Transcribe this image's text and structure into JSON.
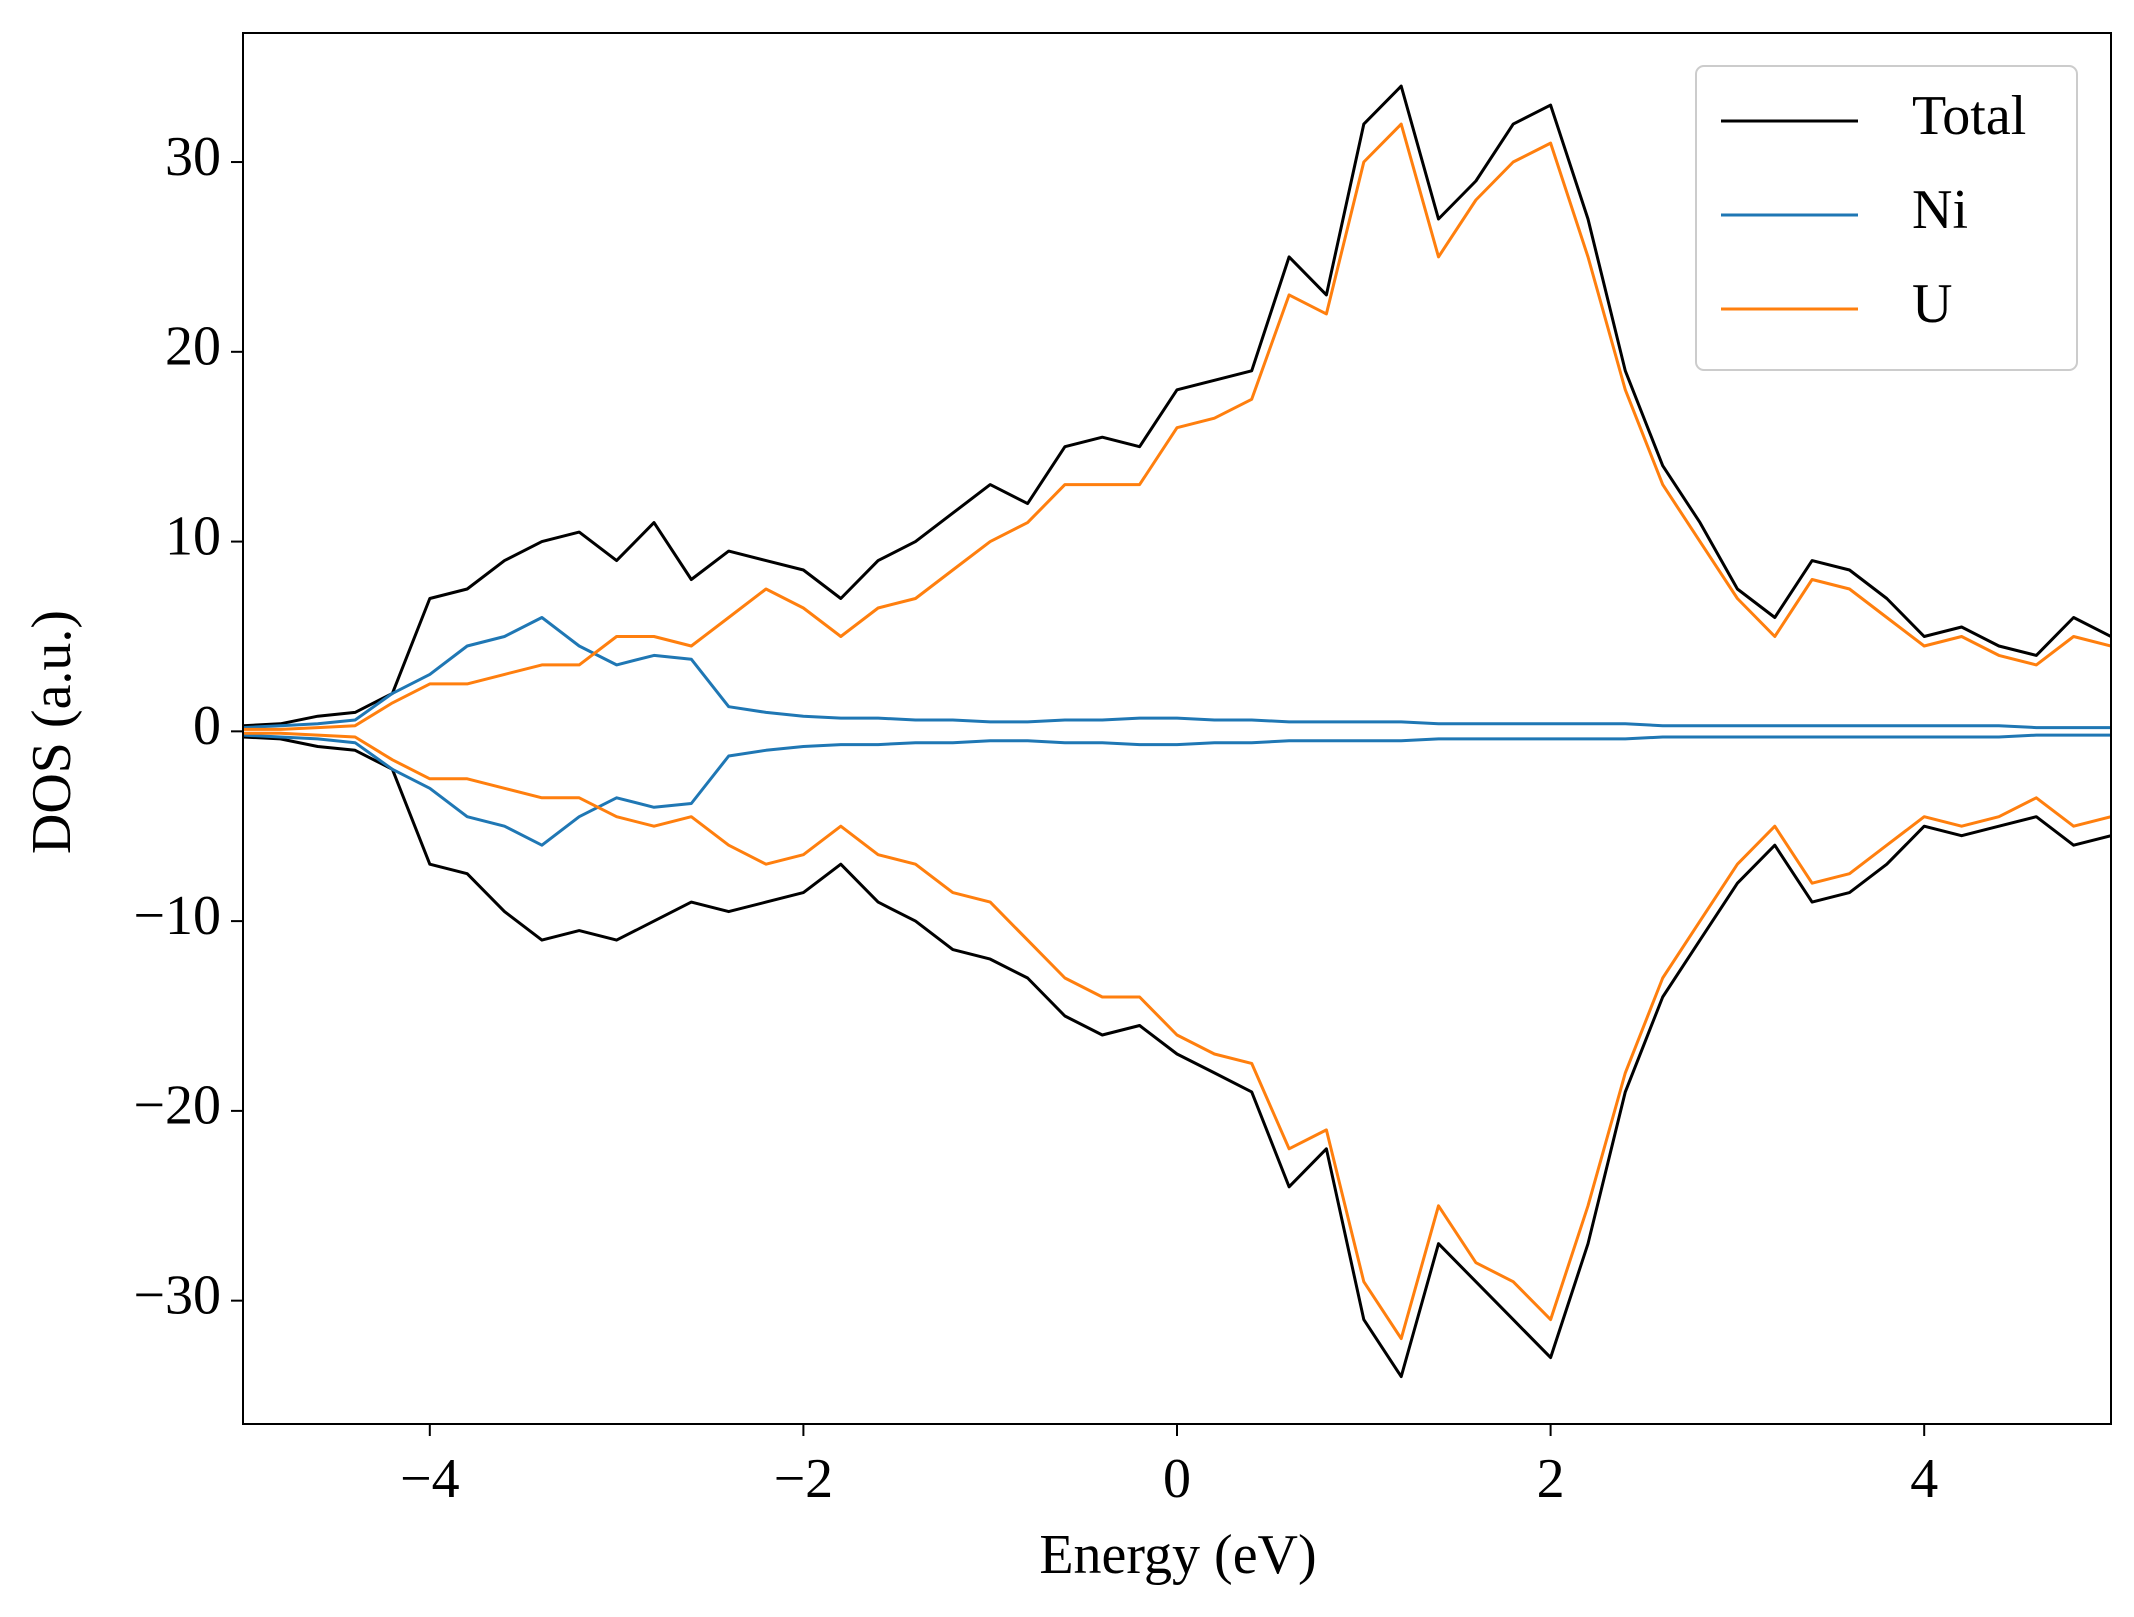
{
  "chart_data": {
    "type": "line",
    "xlabel": "Energy (eV)",
    "ylabel": "DOS (a.u.)",
    "x": [
      -5,
      -4.8,
      -4.6,
      -4.4,
      -4.2,
      -4,
      -3.8,
      -3.6,
      -3.4,
      -3.2,
      -3,
      -2.8,
      -2.6,
      -2.4,
      -2.2,
      -2,
      -1.8,
      -1.6,
      -1.4,
      -1.2,
      -1,
      -0.8,
      -0.6,
      -0.4,
      -0.2,
      0,
      0.2,
      0.4,
      0.6,
      0.8,
      1,
      1.2,
      1.4,
      1.6,
      1.8,
      2,
      2.2,
      2.4,
      2.6,
      2.8,
      3,
      3.2,
      3.4,
      3.6,
      3.8,
      4,
      4.2,
      4.4,
      4.6,
      4.8,
      5
    ],
    "series": [
      {
        "name": "Total",
        "color": "#000000",
        "values": [
          0.3,
          0.4,
          0.8,
          1.0,
          2.0,
          7.0,
          7.5,
          9.0,
          10.0,
          10.5,
          9.0,
          11.0,
          8.0,
          9.5,
          9.0,
          8.5,
          7.0,
          9.0,
          10.0,
          11.5,
          13.0,
          12.0,
          15.0,
          15.5,
          15.0,
          18.0,
          18.5,
          19.0,
          25.0,
          23.0,
          32.0,
          34.0,
          27.0,
          29.0,
          32.0,
          33.0,
          27.0,
          19.0,
          14.0,
          11.0,
          7.5,
          6.0,
          9.0,
          8.5,
          7.0,
          5.0,
          5.5,
          4.5,
          4.0,
          6.0,
          5.0
        ],
        "values_down": [
          -0.3,
          -0.4,
          -0.8,
          -1.0,
          -2.0,
          -7.0,
          -7.5,
          -9.5,
          -11.0,
          -10.5,
          -11.0,
          -10.0,
          -9.0,
          -9.5,
          -9.0,
          -8.5,
          -7.0,
          -9.0,
          -10.0,
          -11.5,
          -12.0,
          -13.0,
          -15.0,
          -16.0,
          -15.5,
          -17.0,
          -18.0,
          -19.0,
          -24.0,
          -22.0,
          -31.0,
          -34.0,
          -27.0,
          -29.0,
          -31.0,
          -33.0,
          -27.0,
          -19.0,
          -14.0,
          -11.0,
          -8.0,
          -6.0,
          -9.0,
          -8.5,
          -7.0,
          -5.0,
          -5.5,
          -5.0,
          -4.5,
          -6.0,
          -5.5
        ]
      },
      {
        "name": "Ni",
        "color": "#1f77b4",
        "values": [
          0.2,
          0.3,
          0.4,
          0.6,
          2.0,
          3.0,
          4.5,
          5.0,
          6.0,
          4.5,
          3.5,
          4.0,
          3.8,
          1.3,
          1.0,
          0.8,
          0.7,
          0.7,
          0.6,
          0.6,
          0.5,
          0.5,
          0.6,
          0.6,
          0.7,
          0.7,
          0.6,
          0.6,
          0.5,
          0.5,
          0.5,
          0.5,
          0.4,
          0.4,
          0.4,
          0.4,
          0.4,
          0.4,
          0.3,
          0.3,
          0.3,
          0.3,
          0.3,
          0.3,
          0.3,
          0.3,
          0.3,
          0.3,
          0.2,
          0.2,
          0.2
        ],
        "values_down": [
          -0.2,
          -0.3,
          -0.4,
          -0.6,
          -2.0,
          -3.0,
          -4.5,
          -5.0,
          -6.0,
          -4.5,
          -3.5,
          -4.0,
          -3.8,
          -1.3,
          -1.0,
          -0.8,
          -0.7,
          -0.7,
          -0.6,
          -0.6,
          -0.5,
          -0.5,
          -0.6,
          -0.6,
          -0.7,
          -0.7,
          -0.6,
          -0.6,
          -0.5,
          -0.5,
          -0.5,
          -0.5,
          -0.4,
          -0.4,
          -0.4,
          -0.4,
          -0.4,
          -0.4,
          -0.3,
          -0.3,
          -0.3,
          -0.3,
          -0.3,
          -0.3,
          -0.3,
          -0.3,
          -0.3,
          -0.3,
          -0.2,
          -0.2,
          -0.2
        ]
      },
      {
        "name": "U",
        "color": "#ff7f0e",
        "values": [
          0.1,
          0.1,
          0.2,
          0.3,
          1.5,
          2.5,
          2.5,
          3.0,
          3.5,
          3.5,
          5.0,
          5.0,
          4.5,
          6.0,
          7.5,
          6.5,
          5.0,
          6.5,
          7.0,
          8.5,
          10.0,
          11.0,
          13.0,
          13.0,
          13.0,
          16.0,
          16.5,
          17.5,
          23.0,
          22.0,
          30.0,
          32.0,
          25.0,
          28.0,
          30.0,
          31.0,
          25.0,
          18.0,
          13.0,
          10.0,
          7.0,
          5.0,
          8.0,
          7.5,
          6.0,
          4.5,
          5.0,
          4.0,
          3.5,
          5.0,
          4.5
        ],
        "values_down": [
          -0.1,
          -0.1,
          -0.2,
          -0.3,
          -1.5,
          -2.5,
          -2.5,
          -3.0,
          -3.5,
          -3.5,
          -4.5,
          -5.0,
          -4.5,
          -6.0,
          -7.0,
          -6.5,
          -5.0,
          -6.5,
          -7.0,
          -8.5,
          -9.0,
          -11.0,
          -13.0,
          -14.0,
          -14.0,
          -16.0,
          -17.0,
          -17.5,
          -22.0,
          -21.0,
          -29.0,
          -32.0,
          -25.0,
          -28.0,
          -29.0,
          -31.0,
          -25.0,
          -18.0,
          -13.0,
          -10.0,
          -7.0,
          -5.0,
          -8.0,
          -7.5,
          -6.0,
          -4.5,
          -5.0,
          -4.5,
          -3.5,
          -5.0,
          -4.5
        ]
      }
    ],
    "xlim": [
      -5,
      5
    ],
    "xticks": [
      {
        "value": -4,
        "label": "−4"
      },
      {
        "value": -2,
        "label": "−2"
      },
      0,
      2,
      4
    ],
    "ylim": [
      -36.5,
      36.8
    ],
    "yticks": [
      {
        "value": -30,
        "label": "−30"
      },
      {
        "value": -20,
        "label": "−20"
      },
      {
        "value": -10,
        "label": "−10"
      },
      0,
      10,
      20,
      30
    ],
    "grid": false,
    "legend": "upper right"
  }
}
